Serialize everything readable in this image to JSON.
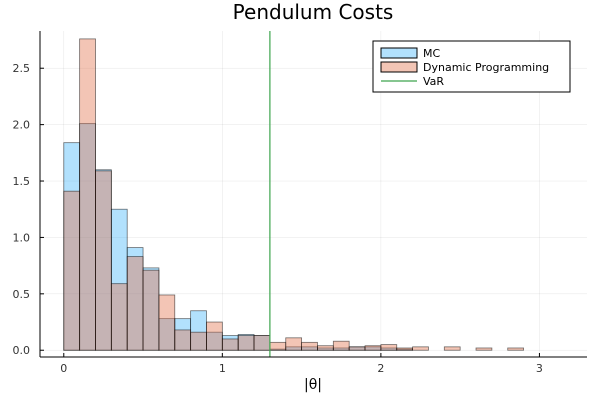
{
  "chart_data": {
    "type": "bar",
    "title": "Pendulum Costs",
    "xlabel": "|θ|",
    "ylabel": "",
    "xlim": [
      -0.15,
      3.3
    ],
    "ylim": [
      -0.06,
      2.83
    ],
    "xticks": [
      0,
      1,
      2,
      3
    ],
    "xtick_labels": [
      "0",
      "1",
      "2",
      "3"
    ],
    "yticks": [
      0.0,
      0.5,
      1.0,
      1.5,
      2.0,
      2.5
    ],
    "ytick_labels": [
      "0.0",
      "0.5",
      "1.0",
      "1.5",
      "2.0",
      "2.5"
    ],
    "grid": true,
    "legend_position": "top-right",
    "bin_width": 0.1,
    "bin_starts": [
      0.0,
      0.1,
      0.2,
      0.3,
      0.4,
      0.5,
      0.6,
      0.7,
      0.8,
      0.9,
      1.0,
      1.1,
      1.2,
      1.3,
      1.4,
      1.5,
      1.6,
      1.7,
      1.8,
      1.9,
      2.0,
      2.1,
      2.2,
      2.3,
      2.4,
      2.5,
      2.6,
      2.7,
      2.8,
      2.9,
      3.0
    ],
    "series": [
      {
        "name": "MC",
        "color": "#009AFA",
        "opacity": 0.3,
        "values": [
          1.84,
          2.01,
          1.6,
          1.25,
          0.91,
          0.73,
          0.28,
          0.28,
          0.35,
          0.16,
          0.13,
          0.14,
          0.13,
          0.01,
          0.03,
          0.03,
          0.02,
          0.02,
          0.03,
          0.03,
          0.02,
          0.01,
          0.0,
          0.0,
          0.0,
          0.0,
          0.0,
          0.0,
          0.0,
          0.0,
          0.0
        ]
      },
      {
        "name": "Dynamic Programming",
        "color": "#E26F46",
        "opacity": 0.4,
        "values": [
          1.41,
          2.76,
          1.59,
          0.59,
          0.83,
          0.71,
          0.49,
          0.18,
          0.16,
          0.25,
          0.1,
          0.13,
          0.13,
          0.07,
          0.11,
          0.07,
          0.04,
          0.08,
          0.03,
          0.04,
          0.05,
          0.02,
          0.03,
          0.0,
          0.03,
          0.0,
          0.02,
          0.0,
          0.02,
          0.0,
          0.0
        ]
      }
    ],
    "vlines": [
      {
        "name": "VaR",
        "x": 1.3,
        "color": "#3DA44D"
      }
    ]
  }
}
